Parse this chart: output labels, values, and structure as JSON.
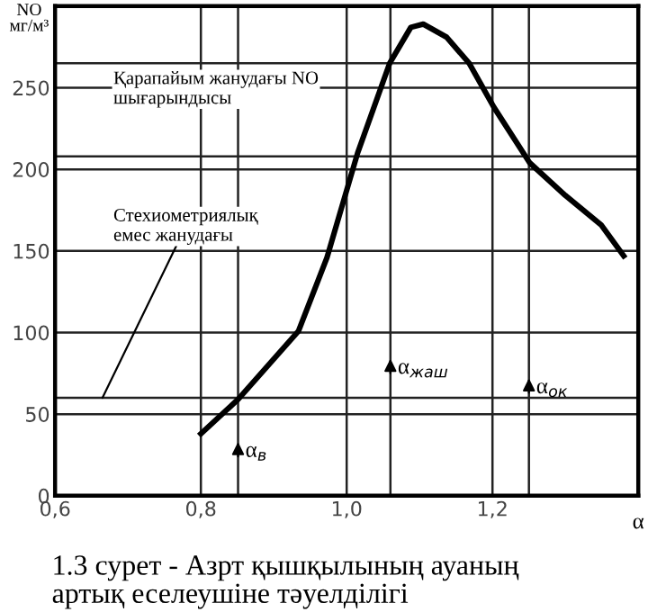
{
  "chart_data": {
    "type": "line",
    "title": "1.3 сурет - Азрт қышқылының ауаның\nартық еселеушіне тәуелділігі",
    "ylabel": "NO\nмг/м³",
    "xlabel": "α",
    "series": [
      {
        "color": "#000000",
        "x": [
          0.8,
          0.851,
          0.934,
          0.973,
          1.015,
          1.059,
          1.088,
          1.105,
          1.137,
          1.168,
          1.202,
          1.251,
          1.3,
          1.349,
          1.38
        ],
        "values": [
          38,
          59,
          101,
          146,
          210,
          265,
          287,
          289,
          281,
          265,
          238,
          204,
          184,
          166,
          147
        ]
      }
    ],
    "xlim": [
      0.6,
      1.4
    ],
    "ylim": [
      0,
      300
    ],
    "xticks": [
      {
        "value": 0.6,
        "label": "0,6"
      },
      {
        "value": 0.8,
        "label": "0,8"
      },
      {
        "value": 1.0,
        "label": "1,0"
      },
      {
        "value": 1.2,
        "label": "1,2"
      }
    ],
    "yticks": [
      0,
      50,
      100,
      150,
      200,
      250
    ],
    "grid": true,
    "marker": "none",
    "line_style": "solid",
    "ref_lines": [
      {
        "axis": "x",
        "value": 0.851,
        "label": "α$_{в}$"
      },
      {
        "axis": "x",
        "value": 1.06,
        "label": "α$_{жаш}$"
      },
      {
        "axis": "x",
        "value": 1.25,
        "label": "α$_{ок}$"
      },
      {
        "axis": "y",
        "value": 60
      },
      {
        "axis": "y",
        "value": 208
      },
      {
        "axis": "y",
        "value": 265
      }
    ],
    "annotations": [
      "Қарапайым жанудағы NO\nшығарындысы",
      {
        "text": "Стехиометриялық\nемес жанудағы",
        "x": 0.665,
        "y": 60
      }
    ]
  }
}
